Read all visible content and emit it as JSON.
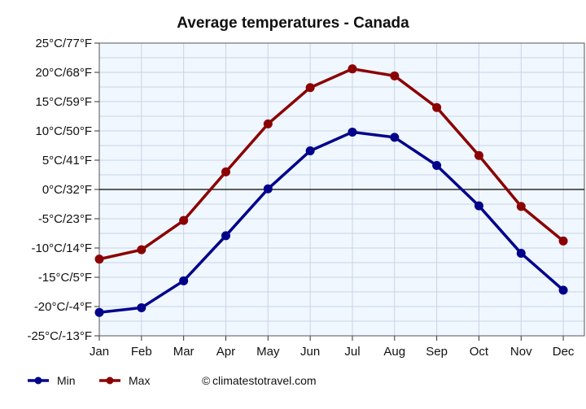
{
  "chart_data": {
    "type": "line",
    "title": "Average temperatures - Canada",
    "categories": [
      "Jan",
      "Feb",
      "Mar",
      "Apr",
      "May",
      "Jun",
      "Jul",
      "Aug",
      "Sep",
      "Oct",
      "Nov",
      "Dec"
    ],
    "y_ticks": [
      "25°C/77°F",
      "20°C/68°F",
      "15°C/59°F",
      "10°C/50°F",
      "5°C/41°F",
      "0°C/32°F",
      "-5°C/23°F",
      "-10°C/14°F",
      "-15°C/5°F",
      "-20°C/-4°F",
      "-25°C/-13°F"
    ],
    "ylim": [
      -25,
      25
    ],
    "grid": true,
    "legend_position": "bottom-left",
    "series": [
      {
        "name": "Min",
        "color": "#00008b",
        "values": [
          -21,
          -20.2,
          -15.6,
          -7.9,
          0.1,
          6.6,
          9.8,
          8.9,
          4.1,
          -2.8,
          -10.9,
          -17.2
        ]
      },
      {
        "name": "Max",
        "color": "#8b0000",
        "values": [
          -11.9,
          -10.3,
          -5.3,
          3,
          11.2,
          17.4,
          20.6,
          19.4,
          14,
          5.8,
          -2.9,
          -8.8
        ]
      }
    ],
    "credit": "climatestotravel.com",
    "credit_symbol": "©"
  }
}
